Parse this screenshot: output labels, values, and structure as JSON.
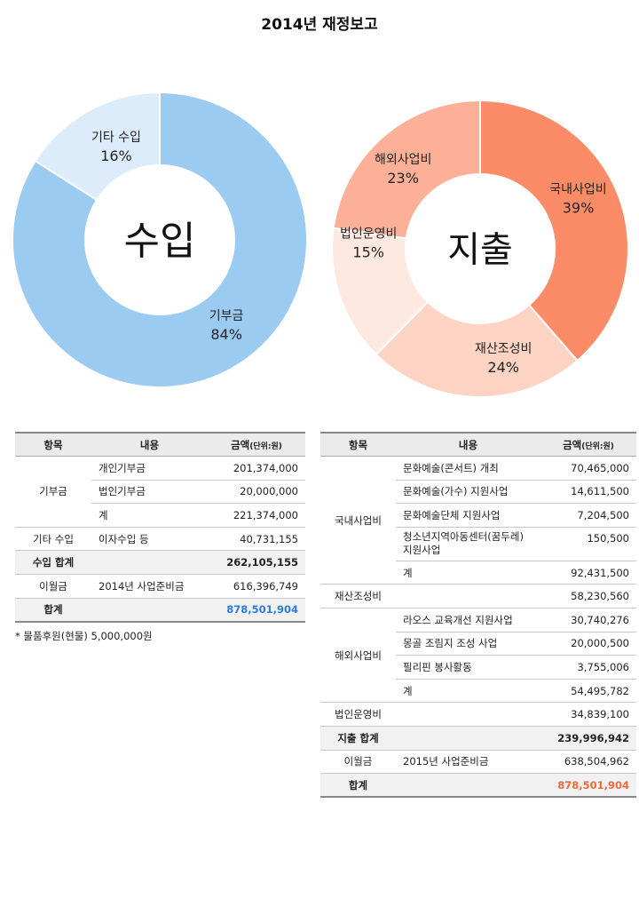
{
  "title": "2014년 재정보고",
  "chart_data": [
    {
      "type": "pie",
      "center_label": "수입",
      "slices": [
        {
          "label": "기부금",
          "value": 84,
          "value_label": "84%",
          "color": "#9ccbf2"
        },
        {
          "label": "기타 수입",
          "value": 16,
          "value_label": "16%",
          "color": "#dcecfb"
        }
      ]
    },
    {
      "type": "pie",
      "center_label": "지출",
      "slices": [
        {
          "label": "국내사업비",
          "value": 39,
          "value_label": "39%",
          "color": "#fb8c67"
        },
        {
          "label": "재산조성비",
          "value": 24,
          "value_label": "24%",
          "color": "#fdd3c3"
        },
        {
          "label": "법인운영비",
          "value": 15,
          "value_label": "15%",
          "color": "#fee9e1"
        },
        {
          "label": "해외사업비",
          "value": 23,
          "value_label": "23%",
          "color": "#fcb097"
        }
      ]
    }
  ],
  "income_table": {
    "headers": {
      "item": "항목",
      "content": "내용",
      "amount": "금액",
      "unit": "(단위:원)"
    },
    "rows": {
      "donation_cat": "기부금",
      "personal_desc": "개인기부금",
      "personal_amt": "201,374,000",
      "corp_desc": "법인기부금",
      "corp_amt": "20,000,000",
      "donation_sum_desc": "계",
      "donation_sum_amt": "221,374,000",
      "other_cat": "기타 수입",
      "other_desc": "이자수입 등",
      "other_amt": "40,731,155",
      "income_total_cat": "수입 합계",
      "income_total_amt": "262,105,155",
      "carry_cat": "이월금",
      "carry_desc": "2014년 사업준비금",
      "carry_amt": "616,396,749",
      "grand_cat": "합계",
      "grand_amt": "878,501,904"
    },
    "note": "* 물품후원(현물) 5,000,000원"
  },
  "expense_table": {
    "headers": {
      "item": "항목",
      "content": "내용",
      "amount": "금액",
      "unit": "(단위:원)"
    },
    "rows": {
      "domestic_cat": "국내사업비",
      "d1_desc": "문화예술(콘서트) 개최",
      "d1_amt": "70,465,000",
      "d2_desc": "문화예술(가수) 지원사업",
      "d2_amt": "14,611,500",
      "d3_desc": "문화예술단체 지원사업",
      "d3_amt": "7,204,500",
      "d4_desc": "청소년지역아동센터(꿈두레) 지원사업",
      "d4_amt": "150,500",
      "d_sum_desc": "계",
      "d_sum_amt": "92,431,500",
      "asset_cat": "재산조성비",
      "asset_amt": "58,230,560",
      "overseas_cat": "해외사업비",
      "o1_desc": "라오스 교육개선 지원사업",
      "o1_amt": "30,740,276",
      "o2_desc": "몽골 조림지 조성 사업",
      "o2_amt": "20,000,500",
      "o3_desc": "필리핀 봉사활동",
      "o3_amt": "3,755,006",
      "o_sum_desc": "계",
      "o_sum_amt": "54,495,782",
      "ops_cat": "법인운영비",
      "ops_amt": "34,839,100",
      "expense_total_cat": "지출 합계",
      "expense_total_amt": "239,996,942",
      "carry_cat": "이월금",
      "carry_desc": "2015년 사업준비금",
      "carry_amt": "638,504,962",
      "grand_cat": "합계",
      "grand_amt": "878,501,904"
    }
  }
}
